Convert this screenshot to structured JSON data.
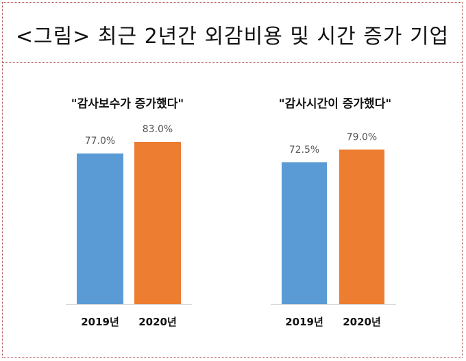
{
  "page": {
    "title": "<그림> 최근 2년간 외감비용 및 시간 증가 기업"
  },
  "colors": {
    "bar_2019": "#5b9bd5",
    "bar_2020": "#ed7d31",
    "axis": "#d9d9d9"
  },
  "chart_data": [
    {
      "type": "bar",
      "title": "\"감사보수가 증가했다\"",
      "categories": [
        "2019년",
        "2020년"
      ],
      "values": [
        77.0,
        83.0
      ],
      "data_labels": [
        "77.0%",
        "83.0%"
      ],
      "ylim": [
        0,
        100
      ],
      "grid": false
    },
    {
      "type": "bar",
      "title": "\"감사시간이 증가했다\"",
      "categories": [
        "2019년",
        "2020년"
      ],
      "values": [
        72.5,
        79.0
      ],
      "data_labels": [
        "72.5%",
        "79.0%"
      ],
      "ylim": [
        0,
        100
      ],
      "grid": false
    }
  ]
}
